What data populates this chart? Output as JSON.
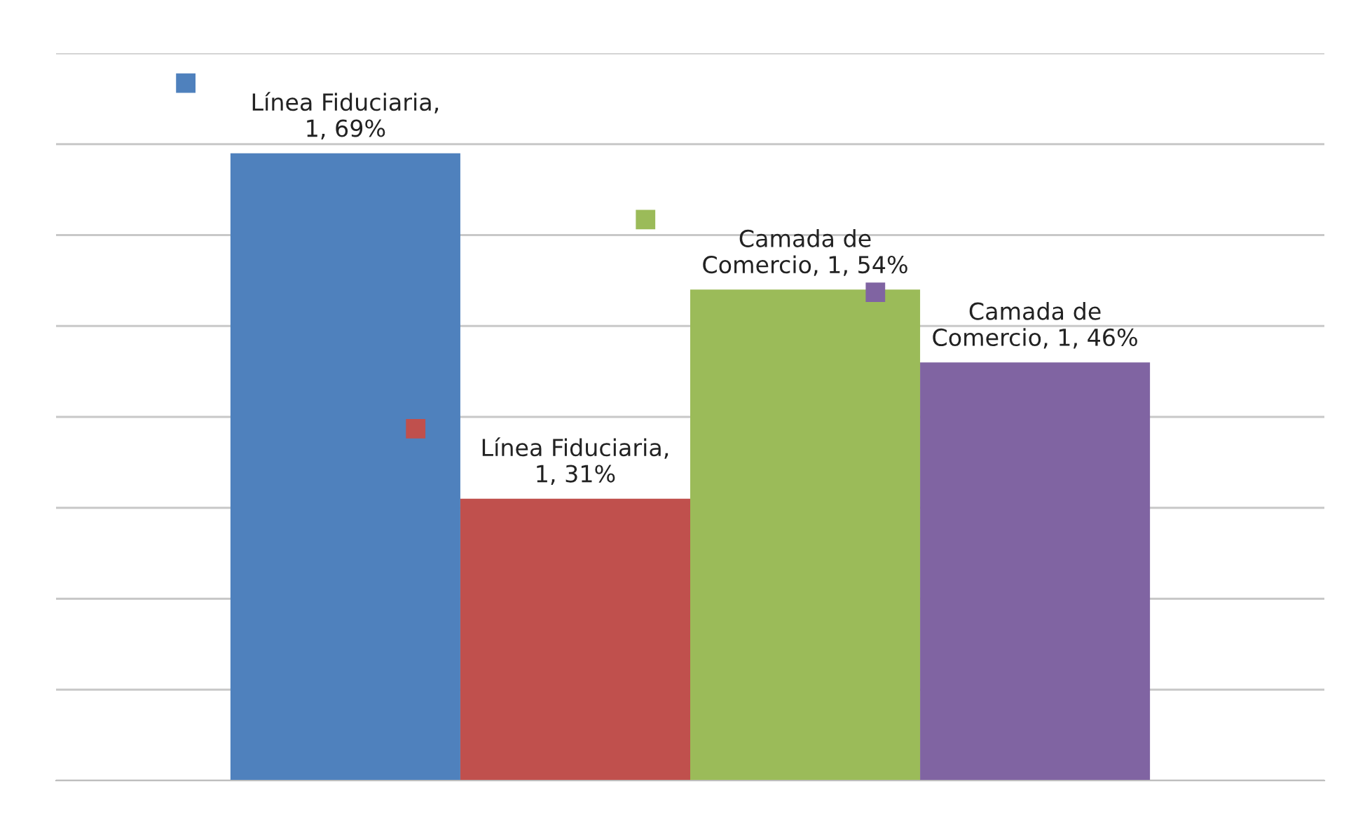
{
  "chart_data": {
    "type": "bar",
    "categories": [
      null
    ],
    "series": [
      {
        "color": "#4f81bd",
        "values": [
          69
        ],
        "value_labels": [
          "Línea Fiduciaria,\n1, 69%"
        ]
      },
      {
        "color": "#c0504d",
        "values": [
          31
        ],
        "value_labels": [
          "Línea Fiduciaria,\n1, 31%"
        ]
      },
      {
        "color": "#9bbb59",
        "values": [
          54
        ],
        "value_labels": [
          "Camada de\nComercio, 1, 54%"
        ]
      },
      {
        "color": "#8064a2",
        "values": [
          46
        ],
        "value_labels": [
          "Camada de\nComercio, 1, 46%"
        ]
      }
    ],
    "ylim": [
      0,
      80
    ],
    "yticks": [
      {
        "value": 0,
        "label": null
      },
      {
        "value": 10,
        "label": null
      },
      {
        "value": 20,
        "label": null
      },
      {
        "value": 30,
        "label": null
      },
      {
        "value": 40,
        "label": null
      },
      {
        "value": 50,
        "label": null
      },
      {
        "value": 60,
        "label": null
      },
      {
        "value": 70,
        "label": null
      },
      {
        "value": 80,
        "label": null
      }
    ],
    "grid": "y"
  }
}
